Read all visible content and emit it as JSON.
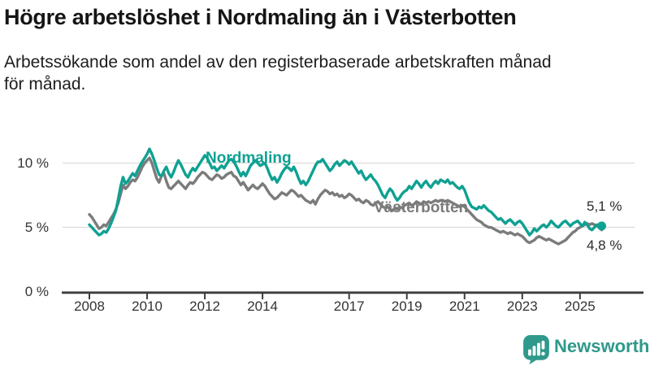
{
  "header": {
    "title": "Högre arbetslöshet i Nordmaling än i Västerbotten",
    "subtitle_line1": "Arbetssökande som andel av den registerbaserade arbetskraften månad",
    "subtitle_line2": "för månad."
  },
  "chart_data": {
    "type": "line",
    "title": "Högre arbetslöshet i Nordmaling än i Västerbotten",
    "xlabel": "",
    "ylabel": "",
    "frequency": "monthly",
    "x_start": "2008-01",
    "x_end": "2025-10",
    "ylim": [
      0,
      11.5
    ],
    "grid": "horizontal",
    "grid_color": "#dcdcdc",
    "axis_color": "#3d3d3d",
    "tick_label_color": "#333333",
    "y_ticks": [
      {
        "value": 0,
        "label": "0 %"
      },
      {
        "value": 5,
        "label": "5 %"
      },
      {
        "value": 10,
        "label": "10 %"
      }
    ],
    "x_ticks": [
      {
        "year": 2008,
        "label": "2008"
      },
      {
        "year": 2010,
        "label": "2010"
      },
      {
        "year": 2012,
        "label": "2012"
      },
      {
        "year": 2014,
        "label": "2014"
      },
      {
        "year": 2017,
        "label": "2017"
      },
      {
        "year": 2019,
        "label": "2019"
      },
      {
        "year": 2021,
        "label": "2021"
      },
      {
        "year": 2023,
        "label": "2023"
      },
      {
        "year": 2025,
        "label": "2025"
      }
    ],
    "series": [
      {
        "key": "nordmaling",
        "name": "Nordmaling",
        "color": "#0fa192",
        "end_label": "5,1 %",
        "end_value": 5.1,
        "end_dot": true,
        "values": [
          5.2,
          5.0,
          4.8,
          4.6,
          4.4,
          4.5,
          4.7,
          4.6,
          4.9,
          5.3,
          5.8,
          6.3,
          7.2,
          8.2,
          8.9,
          8.4,
          8.6,
          8.9,
          9.2,
          9.0,
          9.4,
          9.8,
          10.1,
          10.4,
          10.7,
          11.1,
          10.7,
          10.2,
          9.6,
          9.1,
          9.0,
          9.4,
          9.7,
          9.2,
          8.9,
          9.3,
          9.8,
          10.2,
          9.9,
          9.5,
          9.1,
          8.9,
          9.3,
          9.6,
          9.4,
          9.7,
          10.0,
          10.3,
          10.6,
          10.4,
          10.0,
          9.6,
          9.7,
          9.4,
          9.6,
          9.8,
          9.6,
          9.9,
          10.2,
          10.3,
          10.1,
          9.8,
          9.4,
          9.0,
          9.3,
          9.0,
          9.4,
          9.8,
          10.0,
          10.2,
          10.0,
          9.8,
          9.9,
          10.0,
          9.6,
          9.1,
          8.7,
          8.9,
          8.5,
          8.8,
          9.2,
          9.5,
          9.7,
          9.6,
          9.4,
          9.7,
          9.3,
          8.8,
          8.4,
          8.6,
          8.3,
          8.6,
          9.0,
          9.4,
          9.8,
          10.1,
          10.1,
          10.3,
          10.0,
          9.7,
          9.4,
          9.6,
          9.9,
          10.1,
          9.8,
          10.0,
          10.2,
          10.1,
          9.9,
          10.1,
          9.8,
          9.5,
          9.2,
          9.4,
          9.0,
          8.7,
          8.9,
          9.1,
          8.8,
          8.6,
          8.3,
          7.9,
          7.5,
          7.3,
          7.7,
          8.0,
          7.8,
          7.4,
          7.1,
          7.3,
          7.6,
          7.8,
          7.9,
          8.2,
          8.0,
          8.3,
          8.6,
          8.4,
          8.1,
          8.4,
          8.6,
          8.3,
          8.1,
          8.4,
          8.6,
          8.4,
          8.7,
          8.6,
          8.5,
          8.7,
          8.4,
          8.5,
          8.3,
          8.1,
          8.0,
          8.2,
          7.9,
          7.4,
          6.9,
          6.6,
          6.5,
          6.4,
          6.6,
          6.5,
          6.7,
          6.5,
          6.3,
          6.2,
          6.0,
          5.8,
          5.6,
          5.7,
          5.5,
          5.3,
          5.5,
          5.6,
          5.4,
          5.2,
          5.4,
          5.5,
          5.3,
          5.0,
          4.7,
          4.4,
          4.6,
          4.9,
          4.7,
          4.9,
          5.1,
          5.2,
          5.0,
          5.2,
          5.5,
          5.3,
          5.1,
          5.0,
          5.2,
          5.4,
          5.5,
          5.3,
          5.1,
          5.3,
          5.4,
          5.5,
          5.3,
          5.1,
          5.4,
          5.2,
          4.9,
          4.8,
          5.0,
          5.2,
          5.0,
          5.1
        ]
      },
      {
        "key": "vasterbotten",
        "name": "Västerbotten",
        "color": "#7b7b7b",
        "end_label": "4,8 %",
        "end_value": 4.8,
        "end_dot": false,
        "values": [
          6.0,
          5.8,
          5.5,
          5.2,
          4.9,
          5.0,
          5.2,
          5.1,
          5.4,
          5.7,
          6.0,
          6.4,
          6.9,
          7.6,
          8.3,
          8.0,
          8.2,
          8.5,
          8.7,
          8.6,
          8.9,
          9.3,
          9.7,
          10.0,
          10.2,
          10.4,
          10.0,
          9.4,
          8.8,
          8.5,
          9.0,
          9.2,
          8.6,
          8.1,
          8.0,
          8.2,
          8.4,
          8.6,
          8.4,
          8.2,
          8.0,
          8.3,
          8.5,
          8.4,
          8.6,
          8.9,
          9.1,
          9.3,
          9.2,
          9.0,
          8.8,
          8.7,
          8.9,
          9.1,
          9.0,
          8.8,
          8.9,
          9.1,
          9.2,
          9.3,
          9.0,
          8.9,
          8.6,
          8.3,
          8.5,
          8.2,
          7.9,
          8.1,
          8.3,
          8.1,
          8.0,
          8.2,
          8.4,
          8.2,
          7.9,
          7.6,
          7.4,
          7.2,
          7.3,
          7.5,
          7.7,
          7.6,
          7.5,
          7.7,
          7.9,
          7.8,
          7.6,
          7.4,
          7.5,
          7.3,
          7.1,
          7.0,
          6.9,
          7.1,
          6.8,
          7.2,
          7.5,
          7.7,
          7.9,
          7.8,
          7.6,
          7.7,
          7.5,
          7.6,
          7.4,
          7.5,
          7.3,
          7.4,
          7.6,
          7.5,
          7.3,
          7.1,
          7.2,
          7.0,
          6.9,
          7.1,
          7.0,
          6.8,
          6.7,
          6.9,
          7.0,
          6.8,
          6.6,
          6.5,
          6.6,
          6.4,
          6.3,
          6.5,
          6.4,
          6.6,
          6.5,
          6.7,
          6.8,
          6.9,
          6.7,
          6.8,
          7.0,
          6.9,
          6.8,
          7.0,
          6.9,
          7.0,
          6.9,
          7.0,
          7.1,
          7.0,
          7.1,
          7.1,
          7.0,
          7.1,
          7.0,
          6.9,
          6.8,
          6.7,
          6.6,
          6.7,
          6.6,
          6.4,
          6.2,
          6.0,
          5.8,
          5.6,
          5.5,
          5.4,
          5.2,
          5.1,
          5.0,
          5.0,
          4.9,
          4.8,
          4.7,
          4.6,
          4.7,
          4.6,
          4.5,
          4.6,
          4.5,
          4.4,
          4.5,
          4.4,
          4.3,
          4.1,
          3.9,
          3.8,
          3.9,
          4.0,
          4.2,
          4.3,
          4.2,
          4.1,
          4.0,
          4.1,
          4.0,
          3.9,
          3.8,
          3.7,
          3.8,
          3.9,
          4.0,
          4.2,
          4.4,
          4.6,
          4.7,
          4.9,
          5.0,
          5.1,
          5.2,
          5.3,
          5.2,
          5.3,
          5.2,
          5.1,
          5.0,
          4.8
        ]
      }
    ]
  },
  "footer": {
    "brand": "Newsworthy",
    "brand_color": "#2f998b",
    "logo_icon": "newsworthy-chart-bubble-icon"
  }
}
